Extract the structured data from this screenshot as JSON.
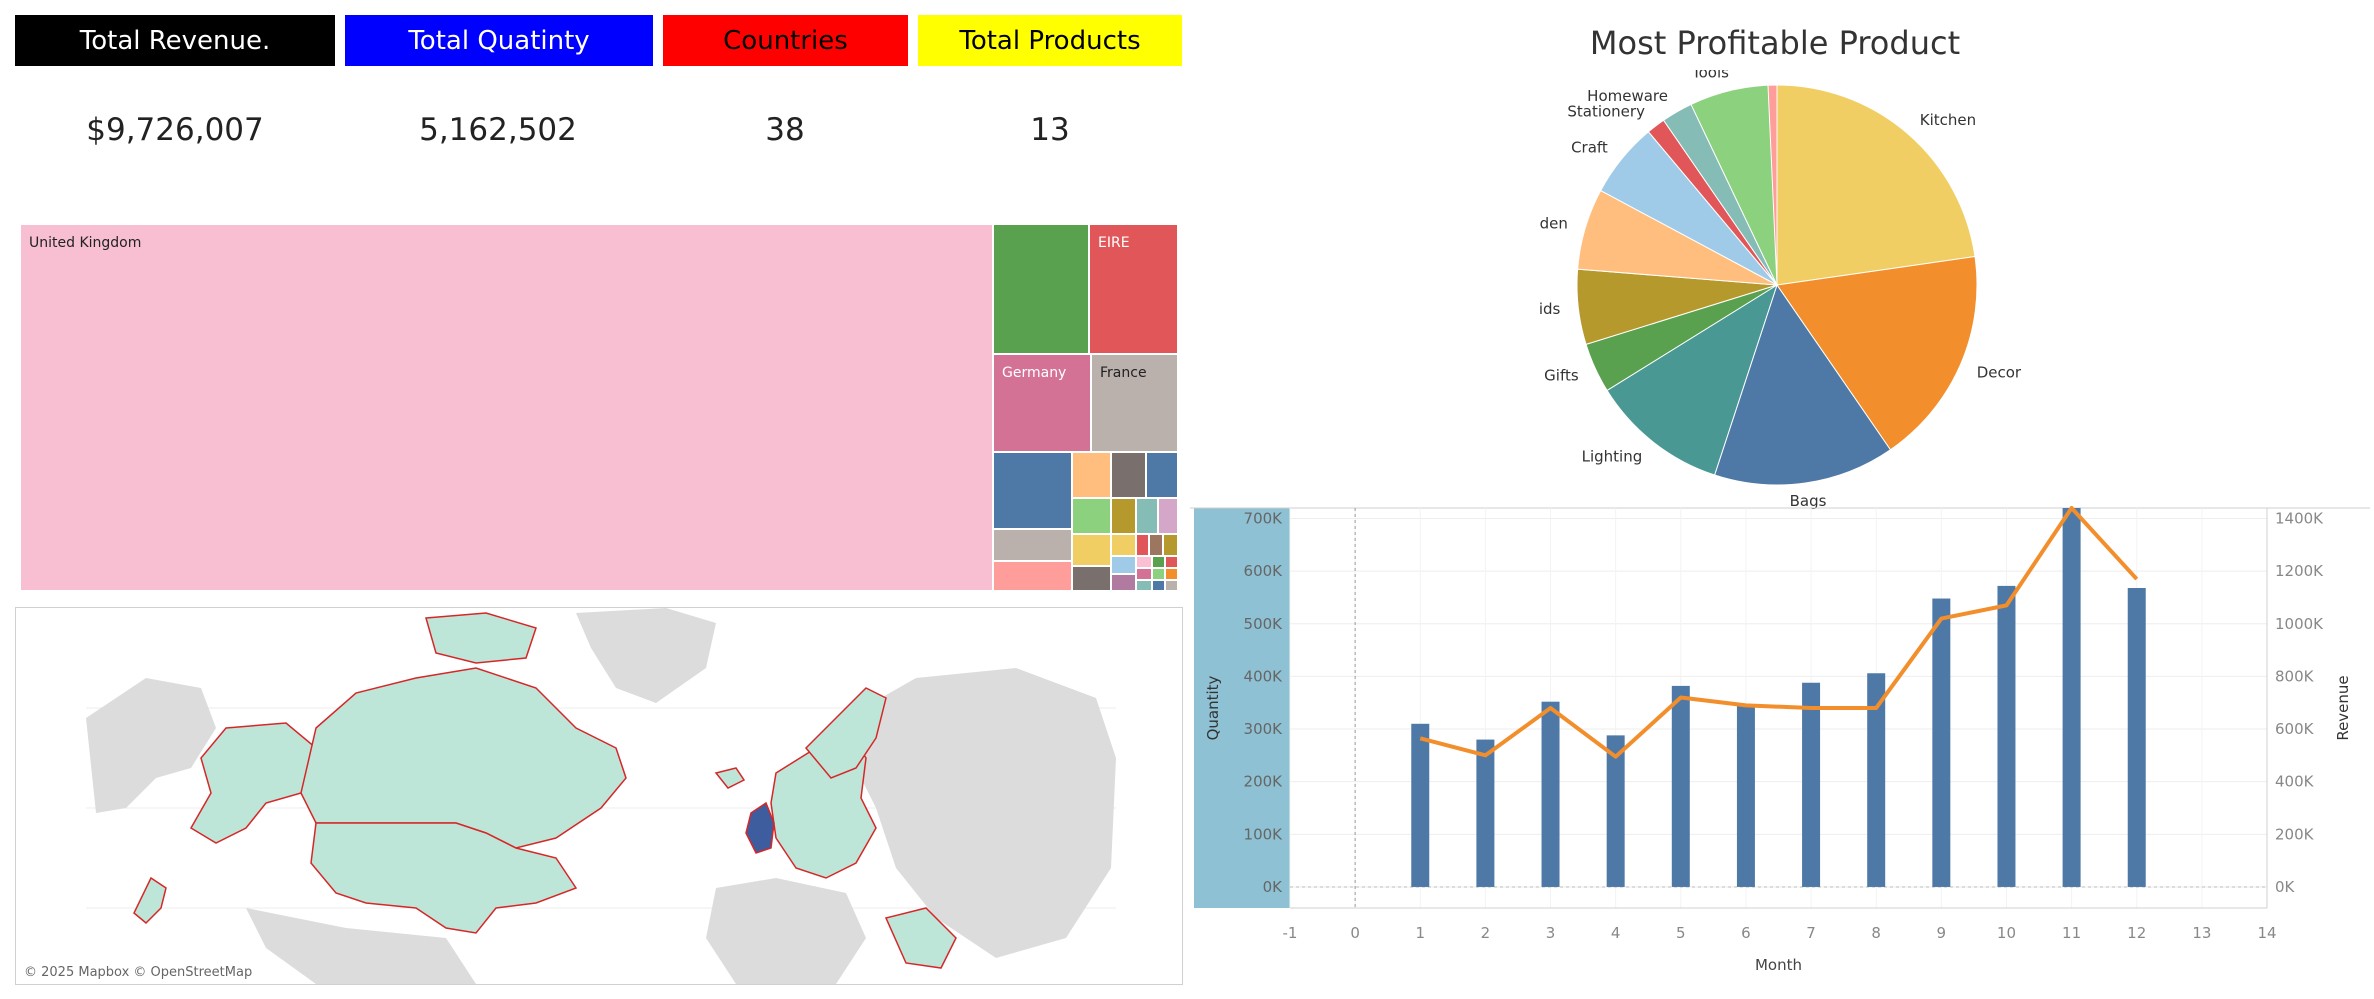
{
  "kpis": [
    {
      "label": "Total Revenue.",
      "value": "$9,726,007",
      "bg": "#000000",
      "fg": "#ffffff"
    },
    {
      "label": "Total Quatinty",
      "value": "5,162,502",
      "bg": "#0000ff",
      "fg": "#ffffff"
    },
    {
      "label": "Countries",
      "value": "38",
      "bg": "#ff0000",
      "fg": "#000000"
    },
    {
      "label": "Total Products",
      "value": "13",
      "bg": "#ffff00",
      "fg": "#000000"
    }
  ],
  "treemap": {
    "labels": {
      "uk": "United Kingdom",
      "eire": "EIRE",
      "germany": "Germany",
      "france": "France"
    }
  },
  "map": {
    "credit": "© 2025 Mapbox © OpenStreetMap"
  },
  "chart_data": [
    {
      "type": "pie",
      "title": "Most Profitable Product",
      "labels": [
        "Kitchen",
        "Decor",
        "Bags",
        "Lighting",
        "Gifts",
        "Kids",
        "Garden",
        "Craft",
        "Stationery",
        "Homeware",
        "Tools"
      ],
      "values": [
        22.5,
        17.5,
        14.5,
        11.0,
        4.0,
        6.0,
        6.5,
        6.0,
        1.5,
        2.5,
        7.0
      ],
      "colors": [
        "#f1ce63",
        "#f28e2b",
        "#4e79a7",
        "#499894",
        "#59a14f",
        "#b6992d",
        "#ffbe7d",
        "#a0cbe8",
        "#e15759",
        "#86bcb6",
        "#8cd17d"
      ],
      "extra_slice_color": "#ff9d9a"
    },
    {
      "type": "bar",
      "xlabel": "Month",
      "ylabel": "Quantity",
      "y2label": "Revenue",
      "x": [
        1,
        2,
        3,
        4,
        5,
        6,
        7,
        8,
        9,
        10,
        11,
        12
      ],
      "series": [
        {
          "name": "Quantity",
          "type": "bar",
          "values": [
            310000,
            280000,
            352000,
            288000,
            382000,
            345000,
            388000,
            406000,
            548000,
            572000,
            740000,
            568000
          ],
          "color": "#4e79a7"
        },
        {
          "name": "Revenue",
          "type": "line",
          "axis": "right",
          "values": [
            565000,
            500000,
            680000,
            495000,
            720000,
            690000,
            680000,
            680000,
            1020000,
            1070000,
            1450000,
            1170000
          ],
          "color": "#f28e2b"
        }
      ],
      "xlim": [
        -1,
        14
      ],
      "xticks": [
        "-1",
        "0",
        "1",
        "2",
        "3",
        "4",
        "5",
        "6",
        "7",
        "8",
        "9",
        "10",
        "11",
        "12",
        "13",
        "14"
      ],
      "ylim": [
        -40000,
        720000
      ],
      "yticks": [
        "0K",
        "100K",
        "200K",
        "300K",
        "400K",
        "500K",
        "600K",
        "700K"
      ],
      "y2lim": [
        -80000,
        1440000
      ],
      "y2ticks": [
        "0K",
        "200K",
        "400K",
        "600K",
        "800K",
        "1000K",
        "1200K",
        "1400K"
      ],
      "grid": true
    }
  ]
}
